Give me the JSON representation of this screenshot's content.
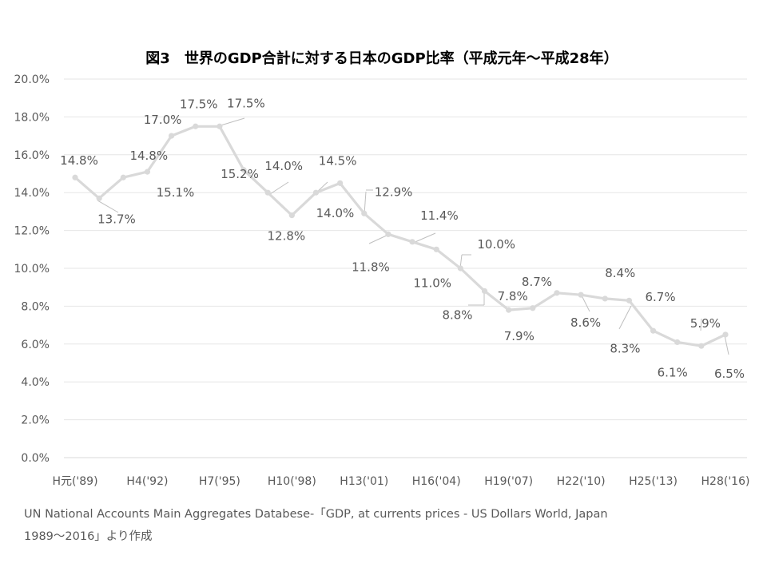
{
  "chart_data": {
    "type": "line",
    "title": "図3　世界のGDP合計に対する日本のGDP比率（平成元年～平成28年）",
    "xlabel": "",
    "ylabel": "",
    "ylim": [
      0,
      20
    ],
    "yticks": [
      "0.0%",
      "2.0%",
      "4.0%",
      "6.0%",
      "8.0%",
      "10.0%",
      "12.0%",
      "14.0%",
      "16.0%",
      "18.0%",
      "20.0%"
    ],
    "xticks": [
      {
        "index": 0,
        "label": "H元('89)"
      },
      {
        "index": 3,
        "label": "H4('92)"
      },
      {
        "index": 6,
        "label": "H7('95)"
      },
      {
        "index": 9,
        "label": "H10('98)"
      },
      {
        "index": 12,
        "label": "H13('01)"
      },
      {
        "index": 15,
        "label": "H16('04)"
      },
      {
        "index": 18,
        "label": "H19('07)"
      },
      {
        "index": 21,
        "label": "H22('10)"
      },
      {
        "index": 24,
        "label": "H25('13)"
      },
      {
        "index": 27,
        "label": "H28('16)"
      }
    ],
    "grid": true,
    "legend": "none",
    "line_color": "#d9d9d9",
    "series": [
      {
        "values": [
          14.8,
          13.7,
          14.8,
          15.1,
          17.0,
          17.5,
          17.5,
          15.2,
          14.0,
          12.8,
          14.0,
          14.5,
          12.9,
          11.8,
          11.4,
          11.0,
          10.0,
          8.8,
          7.8,
          7.9,
          8.7,
          8.6,
          8.4,
          8.3,
          6.7,
          6.1,
          5.9,
          6.5
        ],
        "labels": [
          "14.8%",
          "13.7%",
          "14.8%",
          "15.1%",
          "17.0%",
          "17.5%",
          "17.5%",
          "15.2%",
          "14.0%",
          "12.8%",
          "14.0%",
          "14.5%",
          "12.9%",
          "11.8%",
          "11.4%",
          "11.0%",
          "10.0%",
          "8.8%",
          "7.8%",
          "7.9%",
          "8.7%",
          "8.6%",
          "8.4%",
          "8.3%",
          "6.7%",
          "6.1%",
          "5.9%",
          "6.5%"
        ]
      }
    ]
  },
  "source": {
    "line1": "UN National Accounts Main Aggregates Databese-「GDP, at currents prices - US Dollars  World, Japan",
    "line2": "1989～2016」より作成"
  }
}
